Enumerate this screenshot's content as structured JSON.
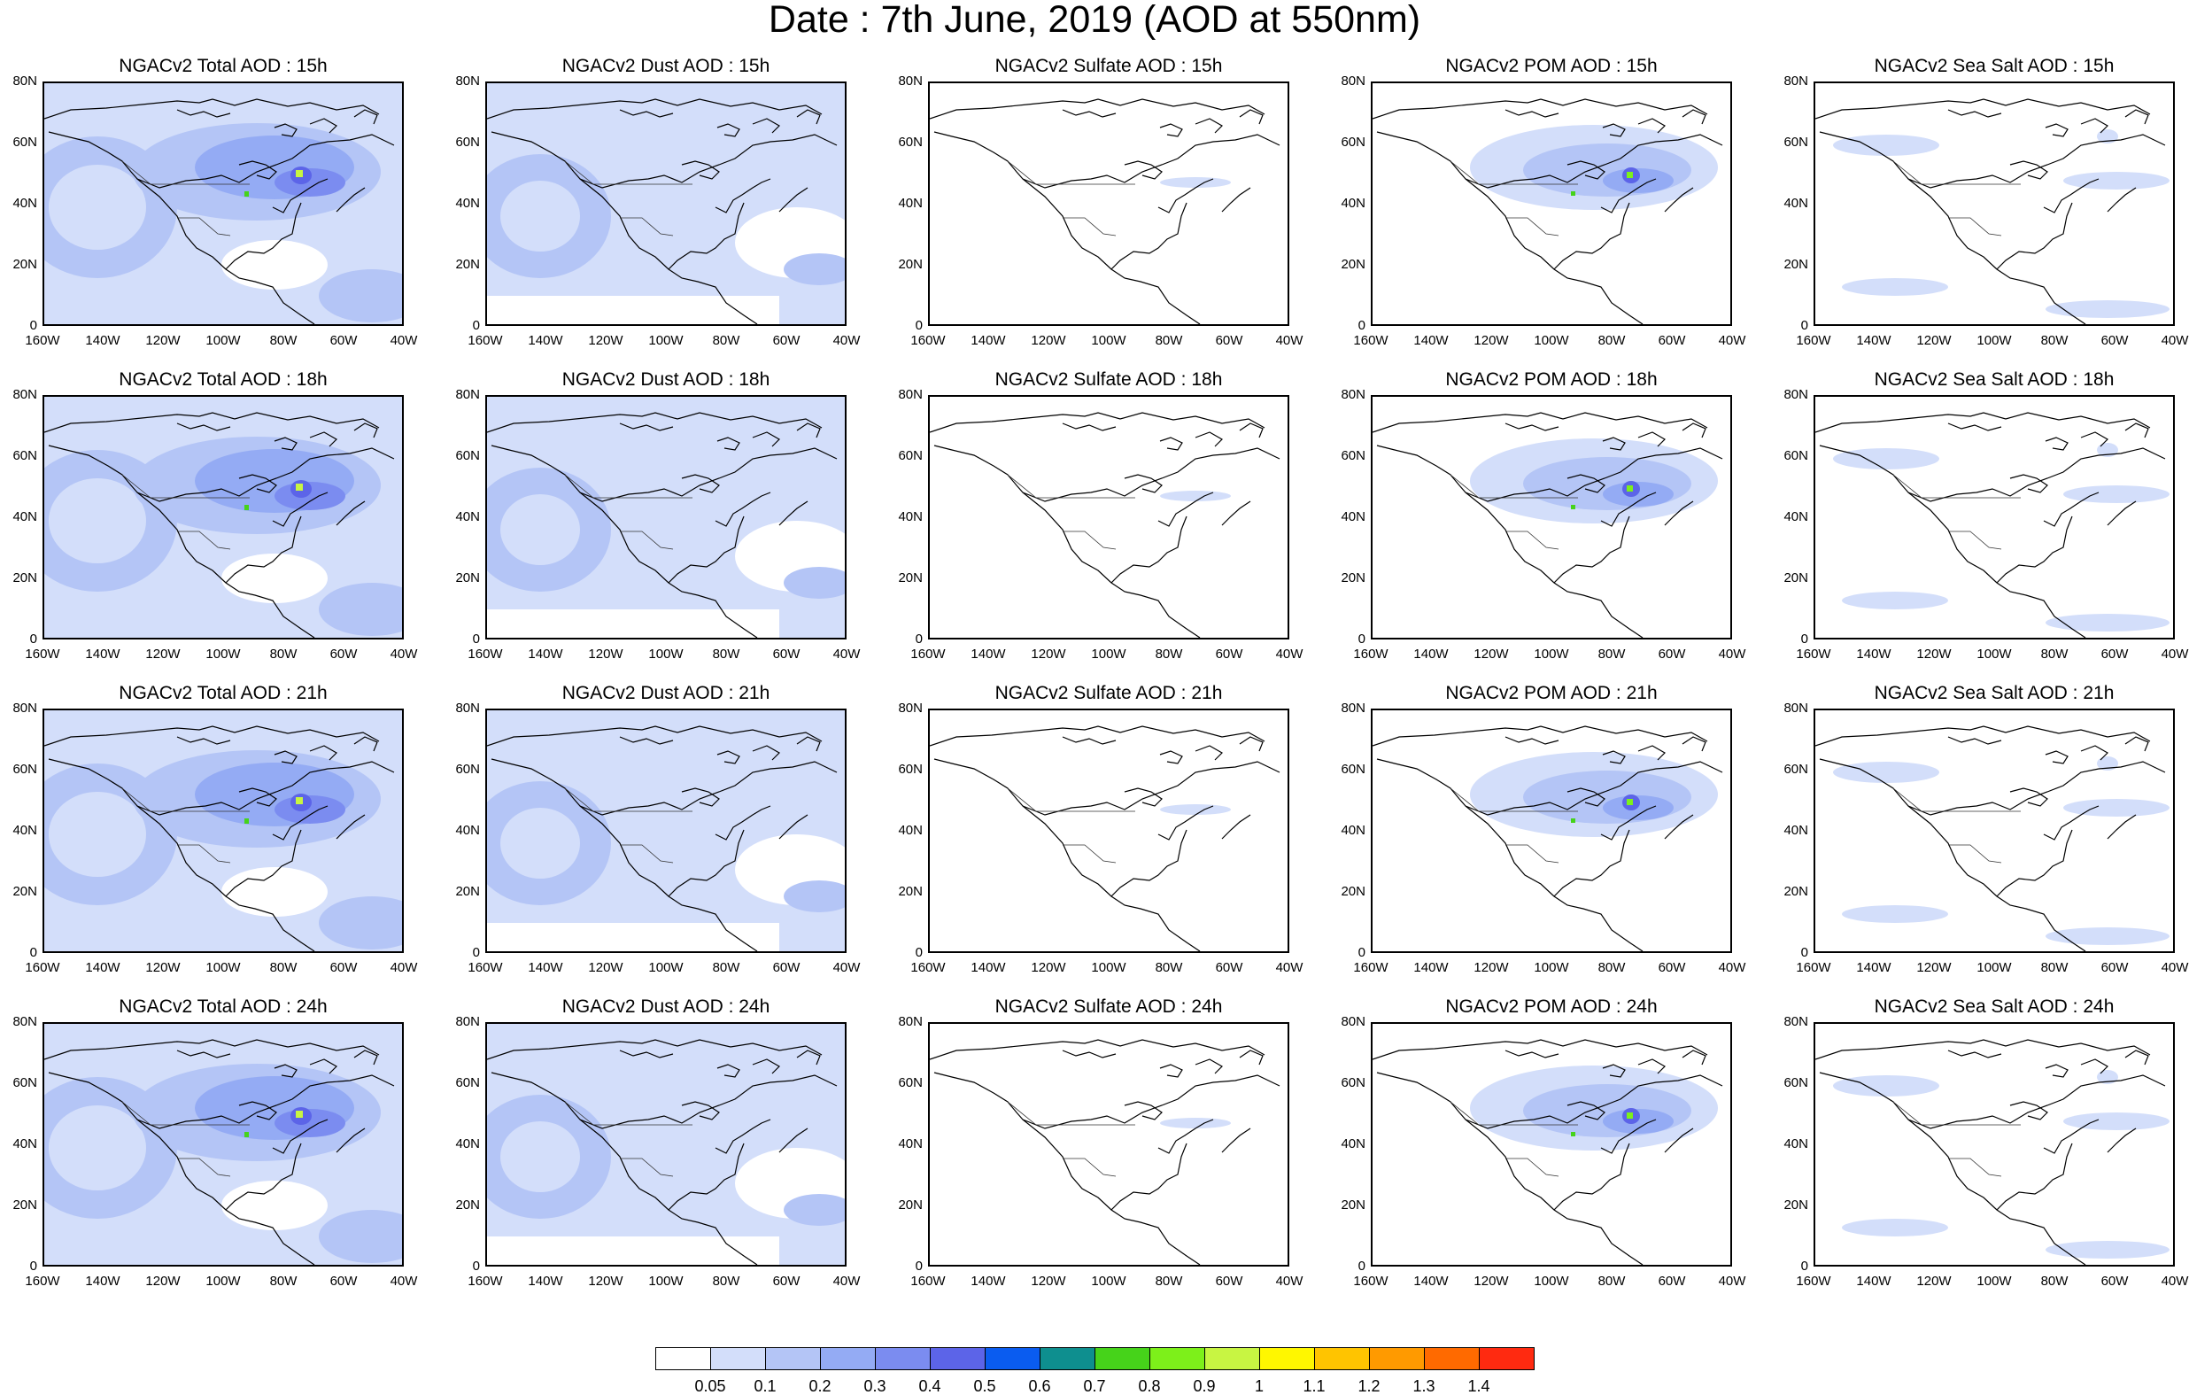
{
  "figure": {
    "title": "Date : 7th June, 2019 (AOD at 550nm)"
  },
  "axes": {
    "lon_labels": [
      "160W",
      "140W",
      "120W",
      "100W",
      "80W",
      "60W",
      "40W"
    ],
    "lat_labels": [
      "0",
      "20N",
      "40N",
      "60N",
      "80N"
    ]
  },
  "colorbar": {
    "labels": [
      "0.05",
      "0.1",
      "0.2",
      "0.3",
      "0.4",
      "0.5",
      "0.6",
      "0.7",
      "0.8",
      "0.9",
      "1",
      "1.1",
      "1.2",
      "1.3",
      "1.4"
    ],
    "colors": [
      "#ffffff",
      "#d3defa",
      "#b4c5f6",
      "#94abf4",
      "#7b8cf0",
      "#5c64e8",
      "#0a5cf0",
      "#0e8f8f",
      "#46d31a",
      "#7df01a",
      "#c8f542",
      "#fff700",
      "#ffc400",
      "#ff9a00",
      "#ff6a00",
      "#ff2a10"
    ]
  },
  "rows": [
    {
      "hour": "15h",
      "titles": [
        "NGACv2 Total AOD : 15h",
        "NGACv2 Dust AOD : 15h",
        "NGACv2 Sulfate AOD : 15h",
        "NGACv2 POM AOD : 15h",
        "NGACv2 Sea Salt AOD : 15h"
      ]
    },
    {
      "hour": "18h",
      "titles": [
        "NGACv2 Total AOD : 18h",
        "NGACv2 Dust AOD : 18h",
        "NGACv2 Sulfate AOD : 18h",
        "NGACv2 POM AOD : 18h",
        "NGACv2 Sea Salt AOD : 18h"
      ]
    },
    {
      "hour": "21h",
      "titles": [
        "NGACv2 Total AOD : 21h",
        "NGACv2 Dust AOD : 21h",
        "NGACv2 Sulfate AOD : 21h",
        "NGACv2 POM AOD : 21h",
        "NGACv2 Sea Salt AOD : 21h"
      ]
    },
    {
      "hour": "24h",
      "titles": [
        "NGACv2 Total AOD : 24h",
        "NGACv2 Dust AOD : 24h",
        "NGACv2 Sulfate AOD : 24h",
        "NGACv2 POM AOD : 24h",
        "NGACv2 Sea Salt  AOD : 24h"
      ]
    }
  ],
  "columns": [
    "total",
    "dust",
    "sulfate",
    "pom",
    "seasalt"
  ]
}
